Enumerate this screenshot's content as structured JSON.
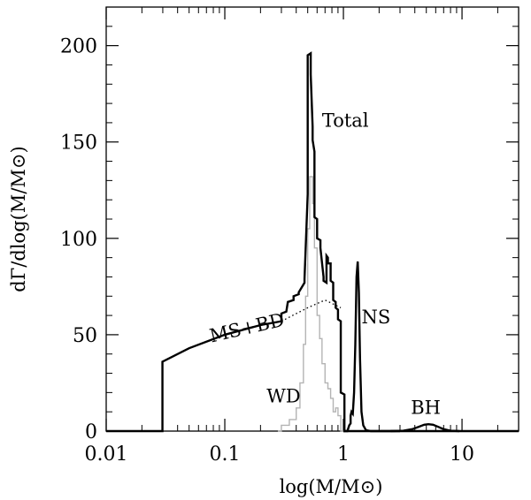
{
  "chart_data": {
    "type": "line",
    "xlabel": "log(M/M⊙)",
    "ylabel": "dΓ/dlog(M/M⊙)",
    "xscale": "log",
    "xlim": [
      0.01,
      30
    ],
    "ylim": [
      0,
      220
    ],
    "x_ticks": [
      0.01,
      0.1,
      1,
      10
    ],
    "x_tick_labels": [
      "0.01",
      "0.1",
      "1",
      "10"
    ],
    "y_ticks": [
      0,
      50,
      100,
      150,
      200
    ],
    "y_tick_labels": [
      "0",
      "50",
      "100",
      "150",
      "200"
    ],
    "grid": false,
    "legend": "none",
    "annotations": [
      {
        "text": "Total",
        "x": 0.66,
        "y": 158
      },
      {
        "text": "MS+BD",
        "x": 0.077,
        "y": 46
      },
      {
        "text": "NS",
        "x": 1.42,
        "y": 56
      },
      {
        "text": "WD",
        "x": 0.225,
        "y": 15
      },
      {
        "text": "BH",
        "x": 3.7,
        "y": 9
      }
    ],
    "series": [
      {
        "name": "Total",
        "color": "#000000",
        "style": "solid-thick",
        "x": [
          0.01,
          0.0298,
          0.0298,
          0.05,
          0.1,
          0.2,
          0.3,
          0.3,
          0.33,
          0.34,
          0.38,
          0.38,
          0.42,
          0.42,
          0.47,
          0.47,
          0.5,
          0.5,
          0.53,
          0.53,
          0.55,
          0.55,
          0.57,
          0.57,
          0.6,
          0.6,
          0.64,
          0.64,
          0.68,
          0.68,
          0.72,
          0.72,
          0.74,
          0.74,
          0.78,
          0.78,
          0.82,
          0.82,
          0.86,
          0.86,
          0.9,
          0.9,
          0.95,
          0.95,
          1.02,
          1.02,
          30
        ],
        "y": [
          0,
          0,
          36,
          43,
          50,
          55,
          57,
          61,
          62,
          67,
          68,
          70,
          71,
          72,
          77,
          79,
          123,
          195,
          196,
          185,
          158,
          151,
          145,
          111,
          110,
          100,
          99,
          95,
          80,
          78,
          77,
          91,
          90,
          87,
          87,
          78,
          77,
          68,
          67,
          64,
          63,
          58,
          57,
          20,
          19,
          0,
          0
        ]
      },
      {
        "name": "MS+BD",
        "color": "#000000",
        "style": "dotted",
        "x": [
          0.3,
          0.5,
          0.7,
          0.95
        ],
        "y": [
          57,
          64,
          68,
          64
        ]
      },
      {
        "name": "WD",
        "color": "#b4b4b4",
        "style": "solid-thin",
        "x": [
          0.28,
          0.3,
          0.3,
          0.35,
          0.35,
          0.4,
          0.4,
          0.43,
          0.43,
          0.46,
          0.46,
          0.48,
          0.48,
          0.5,
          0.5,
          0.52,
          0.52,
          0.55,
          0.55,
          0.57,
          0.57,
          0.6,
          0.6,
          0.63,
          0.63,
          0.66,
          0.66,
          0.7,
          0.7,
          0.74,
          0.74,
          0.78,
          0.78,
          0.82,
          0.82,
          0.86,
          0.86,
          0.9,
          0.9,
          0.95,
          0.95,
          1.0
        ],
        "y": [
          0,
          0,
          3,
          3,
          6,
          6,
          12,
          12,
          25,
          25,
          45,
          45,
          70,
          70,
          105,
          105,
          132,
          132,
          118,
          118,
          95,
          95,
          60,
          60,
          48,
          48,
          35,
          35,
          25,
          25,
          22,
          22,
          17,
          17,
          10,
          10,
          12,
          12,
          8,
          8,
          0,
          0
        ]
      },
      {
        "name": "NS",
        "color": "#000000",
        "style": "solid-thick",
        "x": [
          1.0,
          1.08,
          1.12,
          1.15,
          1.15,
          1.17,
          1.2,
          1.23,
          1.26,
          1.29,
          1.32,
          1.35,
          1.38,
          1.42,
          1.47,
          1.55,
          1.7,
          3.0
        ],
        "y": [
          0,
          0,
          3,
          4,
          8,
          10,
          9,
          20,
          45,
          80,
          88,
          72,
          38,
          10,
          3,
          0.5,
          0,
          0
        ]
      },
      {
        "name": "BH",
        "color": "#000000",
        "style": "solid-thick",
        "x": [
          2.5,
          3.2,
          3.8,
          4.3,
          4.8,
          5.2,
          5.7,
          6.3,
          7.0,
          8.0,
          9.5
        ],
        "y": [
          0,
          0.2,
          1,
          2.2,
          3.3,
          3.6,
          3.3,
          2.2,
          1,
          0.2,
          0
        ]
      }
    ]
  }
}
